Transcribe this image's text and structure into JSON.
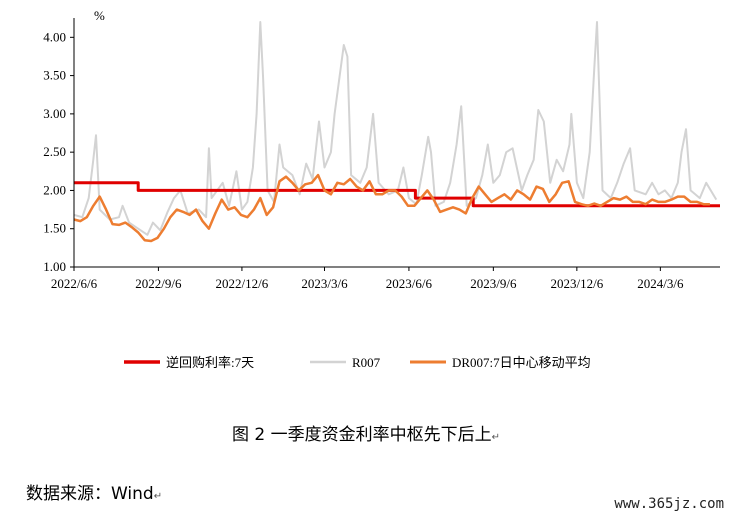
{
  "caption": "图 2 一季度资金利率中枢先下后上",
  "caption_mark": "↵",
  "source": "数据来源：Wind",
  "source_mark": "↵",
  "watermark": "www.365jz.com",
  "chart_data": {
    "type": "line",
    "ylabel": "%",
    "ylim": [
      1.0,
      4.2
    ],
    "yticks": [
      1.0,
      1.5,
      2.0,
      2.5,
      3.0,
      3.5,
      4.0
    ],
    "ytick_labels": [
      "1.00",
      "1.50",
      "2.00",
      "2.50",
      "3.00",
      "3.50",
      "4.00"
    ],
    "xlim": [
      "2022-06-06",
      "2024-05-10"
    ],
    "xticks": [
      "2022-06-06",
      "2022-09-06",
      "2022-12-06",
      "2023-03-06",
      "2023-06-06",
      "2023-09-06",
      "2023-12-06",
      "2024-03-06"
    ],
    "xtick_labels": [
      "2022/6/6",
      "2022/9/6",
      "2022/12/6",
      "2023/3/6",
      "2023/6/6",
      "2023/9/6",
      "2023/12/6",
      "2024/3/6"
    ],
    "legend_position": "bottom",
    "colors": {
      "policy": "#e00000",
      "r007": "#d3d3d3",
      "dr007": "#ed7d31"
    },
    "series": [
      {
        "name": "逆回购利率:7天",
        "step": true,
        "points": [
          [
            "2022-06-06",
            2.1
          ],
          [
            "2022-08-15",
            2.0
          ],
          [
            "2023-06-13",
            1.9
          ],
          [
            "2023-08-15",
            1.8
          ],
          [
            "2024-05-10",
            1.8
          ]
        ]
      },
      {
        "name": "R007",
        "points": [
          [
            "2022-06-06",
            1.68
          ],
          [
            "2022-06-15",
            1.65
          ],
          [
            "2022-06-22",
            1.9
          ],
          [
            "2022-06-27",
            2.4
          ],
          [
            "2022-06-30",
            2.72
          ],
          [
            "2022-07-04",
            1.75
          ],
          [
            "2022-07-15",
            1.62
          ],
          [
            "2022-07-25",
            1.65
          ],
          [
            "2022-07-29",
            1.8
          ],
          [
            "2022-08-05",
            1.58
          ],
          [
            "2022-08-15",
            1.5
          ],
          [
            "2022-08-25",
            1.42
          ],
          [
            "2022-08-31",
            1.58
          ],
          [
            "2022-09-08",
            1.48
          ],
          [
            "2022-09-16",
            1.72
          ],
          [
            "2022-09-23",
            1.9
          ],
          [
            "2022-09-30",
            2.0
          ],
          [
            "2022-10-08",
            1.7
          ],
          [
            "2022-10-20",
            1.75
          ],
          [
            "2022-10-28",
            1.65
          ],
          [
            "2022-10-31",
            2.55
          ],
          [
            "2022-11-03",
            1.9
          ],
          [
            "2022-11-15",
            2.1
          ],
          [
            "2022-11-22",
            1.8
          ],
          [
            "2022-11-30",
            2.25
          ],
          [
            "2022-12-06",
            1.75
          ],
          [
            "2022-12-12",
            1.85
          ],
          [
            "2022-12-18",
            2.3
          ],
          [
            "2022-12-22",
            3.0
          ],
          [
            "2022-12-26",
            4.2
          ],
          [
            "2022-12-29",
            3.5
          ],
          [
            "2023-01-03",
            2.0
          ],
          [
            "2023-01-10",
            1.85
          ],
          [
            "2023-01-16",
            2.6
          ],
          [
            "2023-01-20",
            2.3
          ],
          [
            "2023-01-30",
            2.2
          ],
          [
            "2023-02-07",
            1.95
          ],
          [
            "2023-02-14",
            2.35
          ],
          [
            "2023-02-21",
            2.15
          ],
          [
            "2023-02-28",
            2.9
          ],
          [
            "2023-03-06",
            2.3
          ],
          [
            "2023-03-13",
            2.5
          ],
          [
            "2023-03-17",
            3.0
          ],
          [
            "2023-03-22",
            3.45
          ],
          [
            "2023-03-27",
            3.9
          ],
          [
            "2023-03-31",
            3.75
          ],
          [
            "2023-04-04",
            2.2
          ],
          [
            "2023-04-14",
            2.1
          ],
          [
            "2023-04-21",
            2.3
          ],
          [
            "2023-04-28",
            3.0
          ],
          [
            "2023-05-04",
            2.1
          ],
          [
            "2023-05-15",
            1.95
          ],
          [
            "2023-05-25",
            2.0
          ],
          [
            "2023-05-31",
            2.3
          ],
          [
            "2023-06-06",
            1.9
          ],
          [
            "2023-06-14",
            1.82
          ],
          [
            "2023-06-20",
            2.2
          ],
          [
            "2023-06-27",
            2.7
          ],
          [
            "2023-06-30",
            2.5
          ],
          [
            "2023-07-05",
            1.8
          ],
          [
            "2023-07-14",
            1.85
          ],
          [
            "2023-07-21",
            2.1
          ],
          [
            "2023-07-28",
            2.6
          ],
          [
            "2023-08-02",
            3.1
          ],
          [
            "2023-08-08",
            1.8
          ],
          [
            "2023-08-18",
            1.9
          ],
          [
            "2023-08-25",
            2.2
          ],
          [
            "2023-08-31",
            2.6
          ],
          [
            "2023-09-06",
            2.1
          ],
          [
            "2023-09-13",
            2.2
          ],
          [
            "2023-09-20",
            2.5
          ],
          [
            "2023-09-27",
            2.55
          ],
          [
            "2023-10-07",
            2.0
          ],
          [
            "2023-10-13",
            2.2
          ],
          [
            "2023-10-20",
            2.4
          ],
          [
            "2023-10-25",
            3.05
          ],
          [
            "2023-10-31",
            2.9
          ],
          [
            "2023-11-07",
            2.1
          ],
          [
            "2023-11-14",
            2.4
          ],
          [
            "2023-11-21",
            2.25
          ],
          [
            "2023-11-28",
            2.6
          ],
          [
            "2023-11-30",
            3.0
          ],
          [
            "2023-12-06",
            2.1
          ],
          [
            "2023-12-13",
            1.9
          ],
          [
            "2023-12-20",
            2.5
          ],
          [
            "2023-12-25",
            3.6
          ],
          [
            "2023-12-28",
            4.2
          ],
          [
            "2024-01-03",
            2.0
          ],
          [
            "2024-01-12",
            1.9
          ],
          [
            "2024-01-19",
            2.1
          ],
          [
            "2024-01-26",
            2.35
          ],
          [
            "2024-02-02",
            2.55
          ],
          [
            "2024-02-07",
            2.0
          ],
          [
            "2024-02-19",
            1.95
          ],
          [
            "2024-02-26",
            2.1
          ],
          [
            "2024-03-04",
            1.95
          ],
          [
            "2024-03-11",
            2.0
          ],
          [
            "2024-03-18",
            1.9
          ],
          [
            "2024-03-25",
            2.1
          ],
          [
            "2024-03-29",
            2.5
          ],
          [
            "2024-04-03",
            2.8
          ],
          [
            "2024-04-08",
            2.0
          ],
          [
            "2024-04-18",
            1.9
          ],
          [
            "2024-04-25",
            2.1
          ],
          [
            "2024-05-06",
            1.88
          ]
        ]
      },
      {
        "name": "DR007:7日中心移动平均",
        "points": [
          [
            "2022-06-06",
            1.62
          ],
          [
            "2022-06-13",
            1.6
          ],
          [
            "2022-06-20",
            1.65
          ],
          [
            "2022-06-27",
            1.8
          ],
          [
            "2022-07-04",
            1.92
          ],
          [
            "2022-07-11",
            1.75
          ],
          [
            "2022-07-18",
            1.56
          ],
          [
            "2022-07-25",
            1.55
          ],
          [
            "2022-08-01",
            1.58
          ],
          [
            "2022-08-08",
            1.52
          ],
          [
            "2022-08-15",
            1.45
          ],
          [
            "2022-08-22",
            1.35
          ],
          [
            "2022-08-29",
            1.34
          ],
          [
            "2022-09-05",
            1.38
          ],
          [
            "2022-09-12",
            1.5
          ],
          [
            "2022-09-19",
            1.65
          ],
          [
            "2022-09-26",
            1.75
          ],
          [
            "2022-10-03",
            1.72
          ],
          [
            "2022-10-10",
            1.68
          ],
          [
            "2022-10-17",
            1.75
          ],
          [
            "2022-10-24",
            1.6
          ],
          [
            "2022-10-31",
            1.5
          ],
          [
            "2022-11-07",
            1.7
          ],
          [
            "2022-11-14",
            1.88
          ],
          [
            "2022-11-21",
            1.75
          ],
          [
            "2022-11-28",
            1.78
          ],
          [
            "2022-12-05",
            1.68
          ],
          [
            "2022-12-12",
            1.65
          ],
          [
            "2022-12-19",
            1.75
          ],
          [
            "2022-12-26",
            1.9
          ],
          [
            "2023-01-02",
            1.68
          ],
          [
            "2023-01-09",
            1.78
          ],
          [
            "2023-01-16",
            2.12
          ],
          [
            "2023-01-23",
            2.18
          ],
          [
            "2023-01-30",
            2.1
          ],
          [
            "2023-02-06",
            2.0
          ],
          [
            "2023-02-13",
            2.08
          ],
          [
            "2023-02-20",
            2.1
          ],
          [
            "2023-02-27",
            2.2
          ],
          [
            "2023-03-06",
            2.0
          ],
          [
            "2023-03-13",
            1.95
          ],
          [
            "2023-03-20",
            2.1
          ],
          [
            "2023-03-27",
            2.08
          ],
          [
            "2023-04-03",
            2.15
          ],
          [
            "2023-04-10",
            2.05
          ],
          [
            "2023-04-17",
            2.0
          ],
          [
            "2023-04-24",
            2.12
          ],
          [
            "2023-05-01",
            1.95
          ],
          [
            "2023-05-08",
            1.95
          ],
          [
            "2023-05-15",
            2.0
          ],
          [
            "2023-05-22",
            2.0
          ],
          [
            "2023-05-29",
            1.92
          ],
          [
            "2023-06-05",
            1.8
          ],
          [
            "2023-06-12",
            1.8
          ],
          [
            "2023-06-19",
            1.9
          ],
          [
            "2023-06-26",
            2.0
          ],
          [
            "2023-07-03",
            1.88
          ],
          [
            "2023-07-10",
            1.72
          ],
          [
            "2023-07-17",
            1.75
          ],
          [
            "2023-07-24",
            1.78
          ],
          [
            "2023-07-31",
            1.75
          ],
          [
            "2023-08-07",
            1.7
          ],
          [
            "2023-08-14",
            1.9
          ],
          [
            "2023-08-21",
            2.05
          ],
          [
            "2023-08-28",
            1.95
          ],
          [
            "2023-09-04",
            1.85
          ],
          [
            "2023-09-11",
            1.9
          ],
          [
            "2023-09-18",
            1.95
          ],
          [
            "2023-09-25",
            1.88
          ],
          [
            "2023-10-02",
            2.0
          ],
          [
            "2023-10-09",
            1.95
          ],
          [
            "2023-10-16",
            1.88
          ],
          [
            "2023-10-23",
            2.05
          ],
          [
            "2023-10-30",
            2.02
          ],
          [
            "2023-11-06",
            1.85
          ],
          [
            "2023-11-13",
            1.95
          ],
          [
            "2023-11-20",
            2.1
          ],
          [
            "2023-11-27",
            2.12
          ],
          [
            "2023-12-04",
            1.85
          ],
          [
            "2023-12-11",
            1.82
          ],
          [
            "2023-12-18",
            1.8
          ],
          [
            "2023-12-25",
            1.83
          ],
          [
            "2024-01-01",
            1.8
          ],
          [
            "2024-01-08",
            1.85
          ],
          [
            "2024-01-15",
            1.9
          ],
          [
            "2024-01-22",
            1.88
          ],
          [
            "2024-01-29",
            1.92
          ],
          [
            "2024-02-05",
            1.85
          ],
          [
            "2024-02-12",
            1.85
          ],
          [
            "2024-02-19",
            1.82
          ],
          [
            "2024-02-26",
            1.88
          ],
          [
            "2024-03-04",
            1.85
          ],
          [
            "2024-03-11",
            1.85
          ],
          [
            "2024-03-18",
            1.88
          ],
          [
            "2024-03-25",
            1.92
          ],
          [
            "2024-04-01",
            1.92
          ],
          [
            "2024-04-08",
            1.85
          ],
          [
            "2024-04-15",
            1.85
          ],
          [
            "2024-04-22",
            1.82
          ],
          [
            "2024-04-29",
            1.82
          ]
        ]
      }
    ]
  }
}
